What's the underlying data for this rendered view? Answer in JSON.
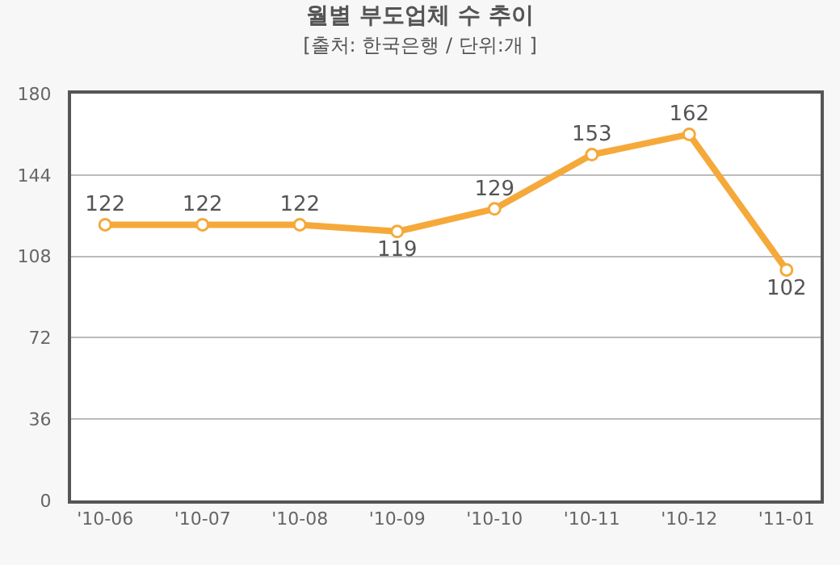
{
  "chart_data": {
    "type": "line",
    "title": "월별 부도업체 수 추이",
    "subtitle": "[출처: 한국은행 / 단위:개 ]",
    "categories": [
      "'10-06",
      "'10-07",
      "'10-08",
      "'10-09",
      "'10-10",
      "'10-11",
      "'10-12",
      "'11-01"
    ],
    "series": [
      {
        "color": "#f5a93a",
        "values": [
          122,
          122,
          122,
          119,
          129,
          153,
          162,
          102
        ]
      }
    ],
    "ylim": [
      0,
      180
    ],
    "yticks": [
      0,
      36,
      72,
      108,
      144,
      180
    ],
    "grid": "y",
    "data_labels": true,
    "marker": "circle",
    "line_style": "solid",
    "legend": false
  }
}
